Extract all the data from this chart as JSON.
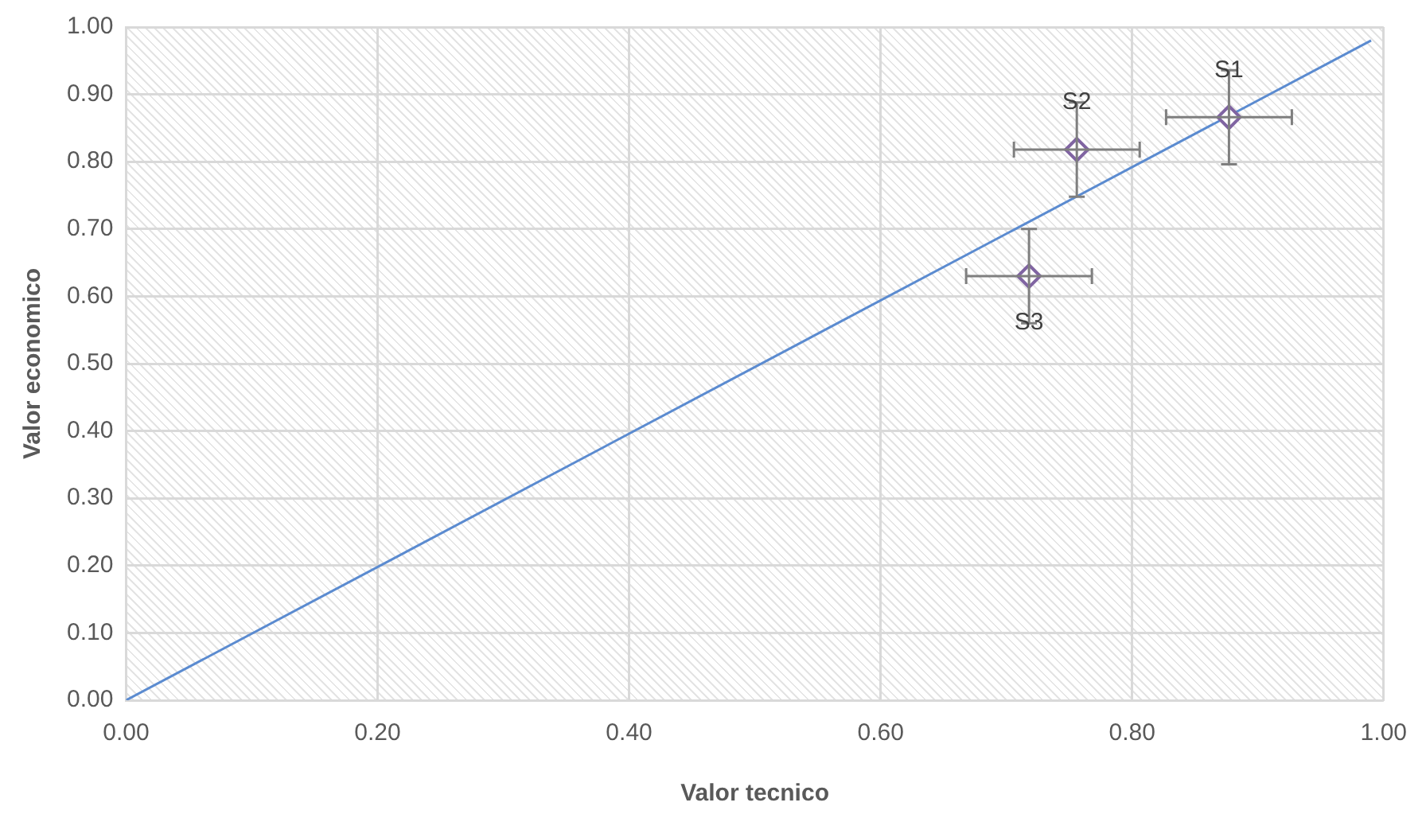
{
  "chart_data": {
    "type": "scatter",
    "xlabel": "Valor tecnico",
    "ylabel": "Valor economico",
    "xlim": [
      0,
      1
    ],
    "ylim": [
      0,
      1
    ],
    "xticks": [
      {
        "value": 0,
        "label": "0.00"
      },
      {
        "value": 0.2,
        "label": "0.20"
      },
      {
        "value": 0.4,
        "label": "0.40"
      },
      {
        "value": 0.6,
        "label": "0.60"
      },
      {
        "value": 0.8,
        "label": "0.80"
      },
      {
        "value": 1,
        "label": "1.00"
      }
    ],
    "yticks": [
      {
        "value": 0,
        "label": "0.00"
      },
      {
        "value": 0.1,
        "label": "0.10"
      },
      {
        "value": 0.2,
        "label": "0.20"
      },
      {
        "value": 0.3,
        "label": "0.30"
      },
      {
        "value": 0.4,
        "label": "0.40"
      },
      {
        "value": 0.5,
        "label": "0.50"
      },
      {
        "value": 0.6,
        "label": "0.60"
      },
      {
        "value": 0.7,
        "label": "0.70"
      },
      {
        "value": 0.8,
        "label": "0.80"
      },
      {
        "value": 0.9,
        "label": "0.90"
      },
      {
        "value": 1,
        "label": "1.00"
      }
    ],
    "grid": true,
    "legend": false,
    "series": [
      {
        "type": "line",
        "color": "#5b8bd0",
        "x": [
          0,
          0.99
        ],
        "values": [
          0,
          0.98
        ],
        "marker": "none",
        "line_style": "solid"
      },
      {
        "color": "#8064a2",
        "marker": "diamond",
        "x": [
          0.877,
          0.756,
          0.718
        ],
        "values": [
          0.866,
          0.818,
          0.63
        ],
        "xerrors": [
          0.05,
          0.05,
          0.05
        ],
        "errors": [
          0.07,
          0.07,
          0.07
        ]
      }
    ],
    "annotations": [
      {
        "text": "S1",
        "x": 0.877,
        "y": 0.866
      },
      {
        "text": "S2",
        "x": 0.756,
        "y": 0.818
      },
      {
        "text": "S3",
        "x": 0.718,
        "y": 0.63
      }
    ]
  }
}
